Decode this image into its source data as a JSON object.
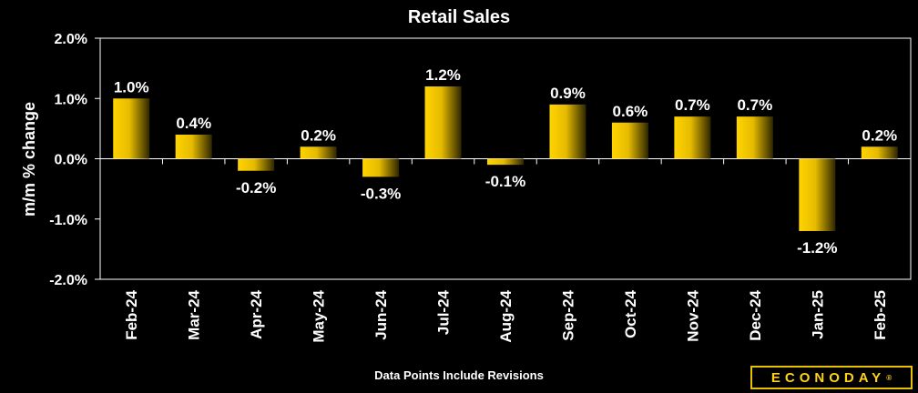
{
  "chart_data": {
    "type": "bar",
    "title": "Retail Sales",
    "ylabel": "m/m % change",
    "xlabel": "",
    "ylim": [
      -2.0,
      2.0
    ],
    "yticks": [
      2.0,
      1.0,
      0.0,
      -1.0,
      -2.0
    ],
    "ytick_labels": [
      "2.0%",
      "1.0%",
      "0.0%",
      "-1.0%",
      "-2.0%"
    ],
    "categories": [
      "Feb-24",
      "Mar-24",
      "Apr-24",
      "May-24",
      "Jun-24",
      "Jul-24",
      "Aug-24",
      "Sep-24",
      "Oct-24",
      "Nov-24",
      "Dec-24",
      "Jan-25",
      "Feb-25"
    ],
    "values": [
      1.0,
      0.4,
      -0.2,
      0.2,
      -0.3,
      1.2,
      -0.1,
      0.9,
      0.6,
      0.7,
      0.7,
      -1.2,
      0.2
    ],
    "data_labels": [
      "1.0%",
      "0.4%",
      "-0.2%",
      "0.2%",
      "-0.3%",
      "1.2%",
      "-0.1%",
      "0.9%",
      "0.6%",
      "0.7%",
      "0.7%",
      "-1.2%",
      "0.2%"
    ],
    "bar_color": "#f2c400",
    "grid": false,
    "legend": "none"
  },
  "footer": {
    "note": "Data Points Include Revisions",
    "logo_text": "ECONODAY",
    "logo_mark": "®"
  },
  "colors": {
    "background": "#000000",
    "bar_light": "#ffd400",
    "bar_dark": "#2e2600",
    "axis": "#ffffff",
    "logo": "#ffd21a"
  }
}
